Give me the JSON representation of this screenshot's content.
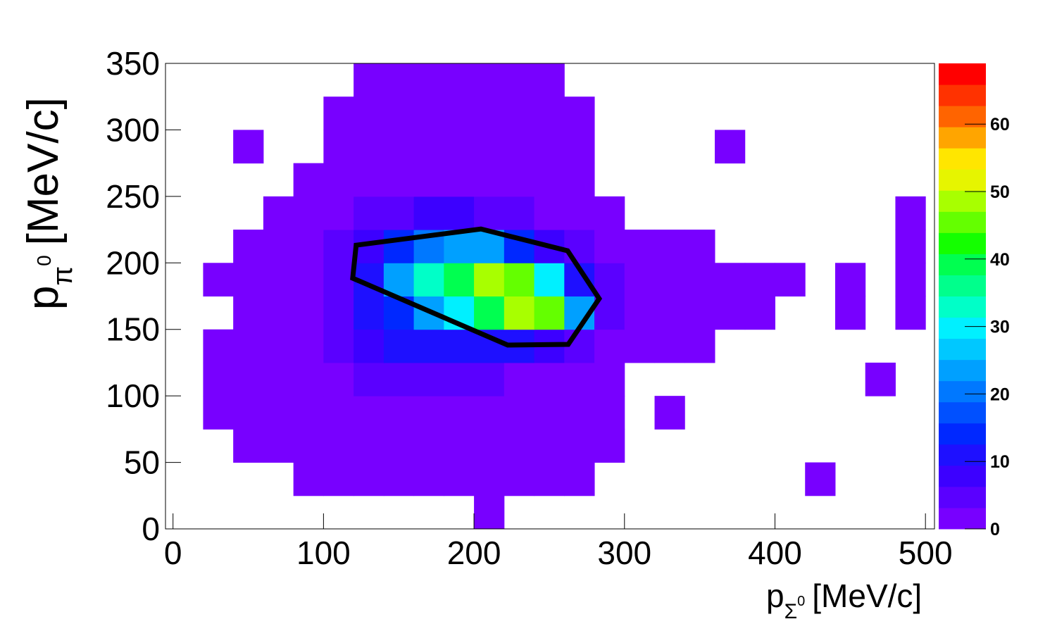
{
  "chart_data": {
    "type": "heatmap",
    "xlabel": {
      "main": "p",
      "sub": "Σ",
      "sup": "0",
      "unit": "[MeV/c]"
    },
    "ylabel": {
      "main": "p",
      "sub": "π",
      "sup": "0",
      "unit": "[MeV/c]"
    },
    "xlim": [
      -5,
      506
    ],
    "ylim": [
      0,
      350
    ],
    "zlim": [
      0,
      69
    ],
    "xticks": [
      0,
      100,
      200,
      300,
      400,
      500
    ],
    "yticks": [
      0,
      50,
      100,
      150,
      200,
      250,
      300,
      350
    ],
    "zticks": [
      0,
      10,
      20,
      30,
      40,
      50,
      60
    ],
    "xbins": [
      0,
      20,
      40,
      60,
      80,
      100,
      120,
      140,
      160,
      180,
      200,
      220,
      240,
      260,
      280,
      300,
      320,
      340,
      360,
      380,
      400,
      420,
      440,
      460,
      480,
      500
    ],
    "ybins": [
      0,
      25,
      50,
      75,
      100,
      125,
      150,
      175,
      200,
      225,
      250,
      275,
      300,
      325,
      350
    ],
    "z": [
      [
        0,
        0,
        0,
        0,
        0,
        0,
        0,
        0,
        0,
        0,
        1,
        0,
        0,
        0,
        0,
        0,
        0,
        0,
        0,
        0,
        0,
        0,
        0,
        0,
        0
      ],
      [
        0,
        0,
        0,
        0,
        1,
        1,
        1,
        1,
        1,
        1,
        1,
        1,
        1,
        1,
        0,
        0,
        0,
        0,
        0,
        0,
        0,
        1,
        0,
        0,
        0
      ],
      [
        0,
        0,
        1,
        1,
        1,
        2,
        2,
        2,
        2,
        2,
        2,
        1,
        1,
        1,
        1,
        0,
        0,
        0,
        0,
        0,
        0,
        0,
        0,
        0,
        0
      ],
      [
        0,
        1,
        1,
        1,
        2,
        2,
        3,
        3,
        3,
        3,
        2,
        2,
        2,
        1,
        1,
        0,
        1,
        0,
        0,
        0,
        0,
        0,
        0,
        0,
        0
      ],
      [
        0,
        1,
        1,
        2,
        2,
        3,
        5,
        5,
        5,
        4,
        4,
        3,
        2,
        1,
        1,
        0,
        0,
        0,
        0,
        0,
        0,
        0,
        0,
        1,
        0
      ],
      [
        0,
        1,
        1,
        2,
        3,
        5,
        8,
        10,
        10,
        10,
        10,
        10,
        8,
        5,
        2,
        1,
        1,
        1,
        0,
        0,
        0,
        0,
        0,
        0,
        0
      ],
      [
        0,
        0,
        1,
        2,
        3,
        6,
        10,
        15,
        22,
        30,
        38,
        50,
        45,
        25,
        6,
        2,
        1,
        1,
        1,
        1,
        0,
        0,
        1,
        0,
        1
      ],
      [
        0,
        1,
        1,
        2,
        3,
        6,
        12,
        22,
        32,
        40,
        48,
        45,
        30,
        12,
        4,
        2,
        1,
        1,
        1,
        1,
        1,
        0,
        1,
        0,
        1
      ],
      [
        0,
        0,
        1,
        1,
        2,
        4,
        8,
        14,
        20,
        24,
        22,
        15,
        8,
        4,
        2,
        1,
        1,
        1,
        0,
        0,
        0,
        0,
        0,
        0,
        1
      ],
      [
        0,
        0,
        0,
        1,
        1,
        2,
        4,
        6,
        7,
        7,
        6,
        4,
        3,
        2,
        1,
        0,
        0,
        0,
        0,
        0,
        0,
        0,
        0,
        0,
        1
      ],
      [
        0,
        0,
        0,
        0,
        1,
        1,
        2,
        3,
        3,
        3,
        3,
        2,
        2,
        1,
        0,
        0,
        0,
        0,
        0,
        0,
        0,
        0,
        0,
        0,
        0
      ],
      [
        0,
        0,
        1,
        0,
        0,
        1,
        1,
        1,
        1,
        2,
        1,
        1,
        1,
        1,
        0,
        0,
        0,
        0,
        1,
        0,
        0,
        0,
        0,
        0,
        0
      ],
      [
        0,
        0,
        0,
        0,
        0,
        1,
        1,
        1,
        1,
        1,
        1,
        1,
        1,
        1,
        0,
        0,
        0,
        0,
        0,
        0,
        0,
        0,
        0,
        0,
        0
      ],
      [
        0,
        0,
        0,
        0,
        0,
        0,
        1,
        1,
        1,
        1,
        1,
        1,
        1,
        0,
        0,
        0,
        0,
        0,
        0,
        0,
        0,
        0,
        0,
        0,
        0
      ]
    ],
    "palette": [
      "#7800ff",
      "#5a00ff",
      "#3c00ff",
      "#1e10ff",
      "#0028ff",
      "#0050ff",
      "#0078ff",
      "#00a0ff",
      "#00c8ff",
      "#00f0ff",
      "#00ffc8",
      "#00ff8c",
      "#00ff50",
      "#14ff00",
      "#64ff00",
      "#a8ff00",
      "#e6f500",
      "#ffe600",
      "#ffa500",
      "#ff6400",
      "#ff3200",
      "#ff0000"
    ],
    "contour": {
      "color": "#000000",
      "x": [
        121.7,
        204.6,
        262.2,
        283.2,
        262.6,
        222.4,
        119.4
      ],
      "y": [
        213.3,
        225.5,
        209.1,
        173.1,
        138.7,
        138.2,
        188.5
      ]
    }
  }
}
